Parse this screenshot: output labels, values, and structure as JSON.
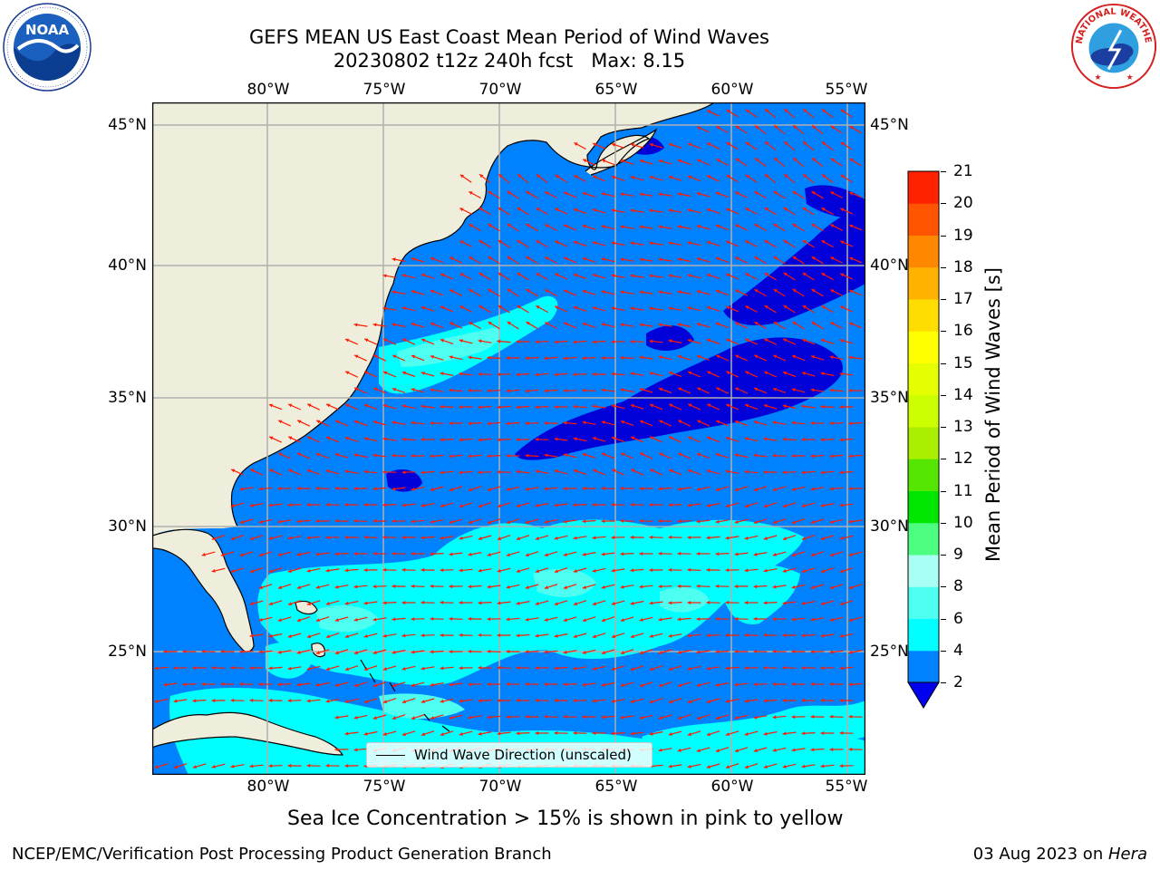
{
  "title": {
    "line1": "GEFS MEAN US East Coast Mean Period of Wind Waves",
    "line2": "20230802 t12z 240h fcst   Max: 8.15"
  },
  "logos": {
    "left": {
      "text": "NOAA",
      "ring_text": "NATIONAL OCEANIC AND ATMOSPHERIC ADMINISTRATION · U.S. DEPARTMENT OF COMMERCE"
    },
    "right": {
      "ring_text": "NATIONAL WEATHER SERVICE"
    }
  },
  "map": {
    "lon_labels": [
      "80°W",
      "75°W",
      "70°W",
      "65°W",
      "60°W",
      "55°W"
    ],
    "lat_labels": [
      "45°N",
      "40°N",
      "35°N",
      "30°N",
      "25°N"
    ],
    "colors": {
      "land": "#efeedc",
      "coast": "#000000",
      "grid": "#b0b0b0",
      "arrow": "#ff1a00",
      "period_2_4": "#0082ff",
      "period_lt_2": "#0000d9",
      "period_4_6": "#00ffff",
      "period_6_8": "#4dfff0",
      "period_8_9": "#aafff5"
    },
    "legend": {
      "label": "Wind Wave Direction (unscaled)"
    }
  },
  "colorbar": {
    "label": "Mean Period of Wind Waves [s]",
    "ticks": [
      "2",
      "4",
      "6",
      "8",
      "9",
      "10",
      "11",
      "12",
      "13",
      "14",
      "15",
      "16",
      "17",
      "18",
      "19",
      "20",
      "21"
    ],
    "colors": [
      "#0082ff",
      "#00ffff",
      "#4dfff0",
      "#aafff5",
      "#4dff80",
      "#00e600",
      "#55e600",
      "#aaee00",
      "#ccff00",
      "#e6ff00",
      "#ffff00",
      "#ffdd00",
      "#ffb300",
      "#ff8800",
      "#ff5500",
      "#ff2200"
    ],
    "extend_color": "#0000ee"
  },
  "note": "Sea Ice Concentration > 15% is shown in pink to yellow",
  "footer": {
    "left": "NCEP/EMC/Verification Post Processing Product Generation Branch",
    "date": "03 Aug 2023 on ",
    "machine": "Hera"
  }
}
